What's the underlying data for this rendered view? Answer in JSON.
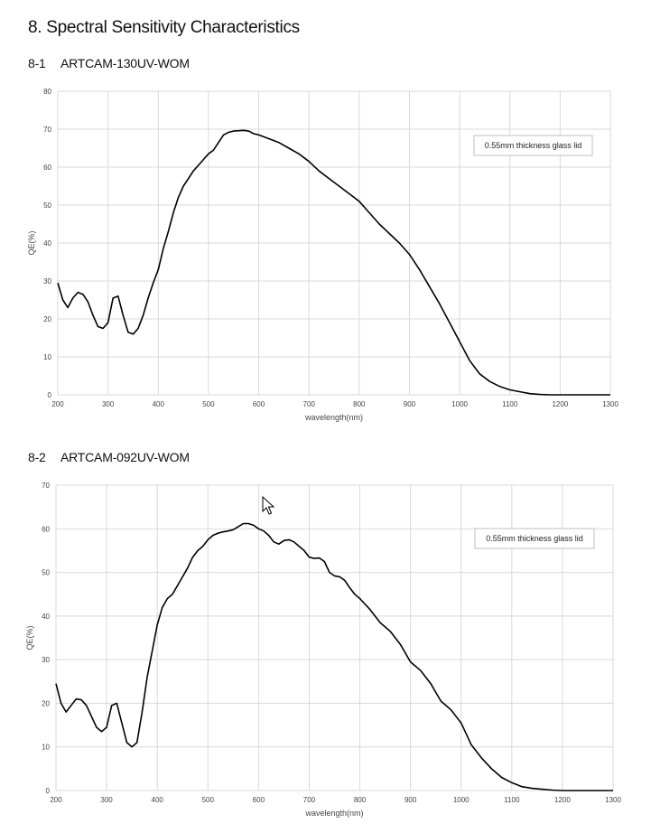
{
  "page": {
    "title": "8. Spectral Sensitivity Characteristics"
  },
  "charts": [
    {
      "number": "8-1",
      "name": "ARTCAM-130UV-WOM"
    },
    {
      "number": "8-2",
      "name": "ARTCAM-092UV-WOM"
    }
  ],
  "chart_data": [
    {
      "type": "line",
      "title": "",
      "xlabel": "wavelength(nm)",
      "ylabel": "QE(%)",
      "xlim": [
        200,
        1300
      ],
      "ylim": [
        0,
        80
      ],
      "xticks": [
        200,
        300,
        400,
        500,
        600,
        700,
        800,
        900,
        1000,
        1100,
        1200,
        1300
      ],
      "yticks": [
        0,
        10,
        20,
        30,
        40,
        50,
        60,
        70,
        80
      ],
      "grid": true,
      "legend_position": "top-right",
      "annotation": "0.55mm thickness glass lid",
      "color": "#000000",
      "x": [
        200,
        210,
        220,
        230,
        240,
        250,
        260,
        270,
        280,
        290,
        300,
        310,
        320,
        330,
        340,
        350,
        360,
        370,
        380,
        390,
        400,
        410,
        420,
        430,
        440,
        450,
        460,
        470,
        480,
        490,
        500,
        510,
        520,
        530,
        540,
        550,
        560,
        570,
        580,
        590,
        600,
        620,
        640,
        660,
        680,
        700,
        720,
        740,
        760,
        780,
        800,
        820,
        840,
        860,
        880,
        900,
        920,
        940,
        960,
        980,
        1000,
        1020,
        1040,
        1060,
        1080,
        1100,
        1120,
        1140,
        1160,
        1180,
        1200,
        1250,
        1300
      ],
      "y": [
        29.5,
        25,
        23,
        25.5,
        27,
        26.5,
        24.5,
        21,
        18,
        17.5,
        19,
        25.5,
        26,
        21,
        16.5,
        16,
        17.5,
        21,
        25.5,
        29.5,
        33,
        38.5,
        43,
        48,
        52,
        55,
        57,
        59,
        60.5,
        62,
        63.5,
        64.5,
        66.5,
        68.5,
        69.2,
        69.5,
        69.6,
        69.7,
        69.5,
        68.8,
        68.5,
        67.5,
        66.5,
        65,
        63.5,
        61.5,
        59,
        57,
        55,
        53,
        51,
        48,
        45,
        42.5,
        40,
        37,
        33,
        28.5,
        24,
        19,
        14,
        9,
        5.5,
        3.5,
        2.2,
        1.3,
        0.8,
        0.3,
        0.1,
        0,
        0,
        0,
        0
      ]
    },
    {
      "type": "line",
      "title": "",
      "xlabel": "wavelength(nm)",
      "ylabel": "QE(%)",
      "xlim": [
        200,
        1300
      ],
      "ylim": [
        0,
        70
      ],
      "xticks": [
        200,
        300,
        400,
        500,
        600,
        700,
        800,
        900,
        1000,
        1100,
        1200,
        1300
      ],
      "yticks": [
        0,
        10,
        20,
        30,
        40,
        50,
        60,
        70
      ],
      "grid": true,
      "legend_position": "top-right",
      "annotation": "0.55mm thickness glass lid",
      "color": "#000000",
      "x": [
        200,
        210,
        220,
        230,
        240,
        250,
        260,
        270,
        280,
        290,
        300,
        310,
        320,
        330,
        340,
        350,
        360,
        370,
        380,
        390,
        400,
        410,
        420,
        430,
        440,
        450,
        460,
        470,
        480,
        490,
        500,
        510,
        520,
        530,
        540,
        550,
        560,
        570,
        580,
        590,
        600,
        610,
        620,
        630,
        640,
        650,
        660,
        670,
        680,
        690,
        700,
        710,
        720,
        730,
        740,
        750,
        760,
        770,
        780,
        790,
        800,
        820,
        840,
        860,
        880,
        900,
        920,
        940,
        960,
        980,
        1000,
        1010,
        1020,
        1040,
        1060,
        1080,
        1100,
        1120,
        1140,
        1160,
        1180,
        1200,
        1250,
        1300
      ],
      "y": [
        24.5,
        20,
        18,
        19.5,
        21,
        20.8,
        19.5,
        17,
        14.5,
        13.5,
        14.5,
        19.5,
        20,
        15.5,
        11,
        10,
        11,
        18,
        26,
        32,
        38,
        42,
        44,
        45,
        47,
        49,
        51,
        53.5,
        55,
        56,
        57.5,
        58.5,
        59,
        59.3,
        59.5,
        59.8,
        60.5,
        61.2,
        61.2,
        60.8,
        60,
        59.5,
        58.5,
        57,
        56.5,
        57.3,
        57.5,
        57,
        56,
        55,
        53.5,
        53.2,
        53.3,
        52.5,
        50,
        49.2,
        49,
        48.2,
        46.5,
        45,
        44,
        41.5,
        38.5,
        36.5,
        33.5,
        29.5,
        27.5,
        24.5,
        20.5,
        18.5,
        15.5,
        13,
        10.5,
        7.5,
        5,
        3,
        1.8,
        0.9,
        0.5,
        0.3,
        0.1,
        0,
        0,
        0
      ]
    }
  ]
}
